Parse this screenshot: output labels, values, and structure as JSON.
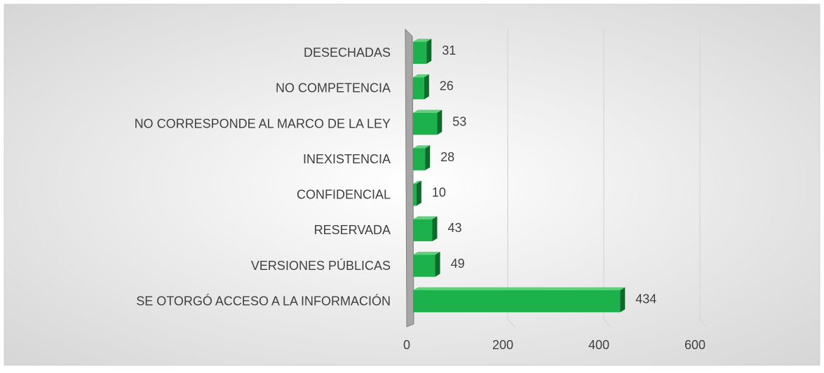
{
  "chart_data": {
    "type": "bar3d_horizontal",
    "categories": [
      "DESECHADAS",
      "NO COMPETENCIA",
      "NO CORRESPONDE AL MARCO DE LA LEY",
      "INEXISTENCIA",
      "CONFIDENCIAL",
      "RESERVADA",
      "VERSIONES PÚBLICAS",
      "SE OTORGÓ ACCESO A LA INFORMACIÓN"
    ],
    "values": [
      31,
      26,
      53,
      28,
      10,
      43,
      49,
      434
    ],
    "color": "#1db14b",
    "xlim": [
      0,
      600
    ],
    "xticks": [
      0,
      200,
      400,
      600
    ],
    "grid": true
  }
}
